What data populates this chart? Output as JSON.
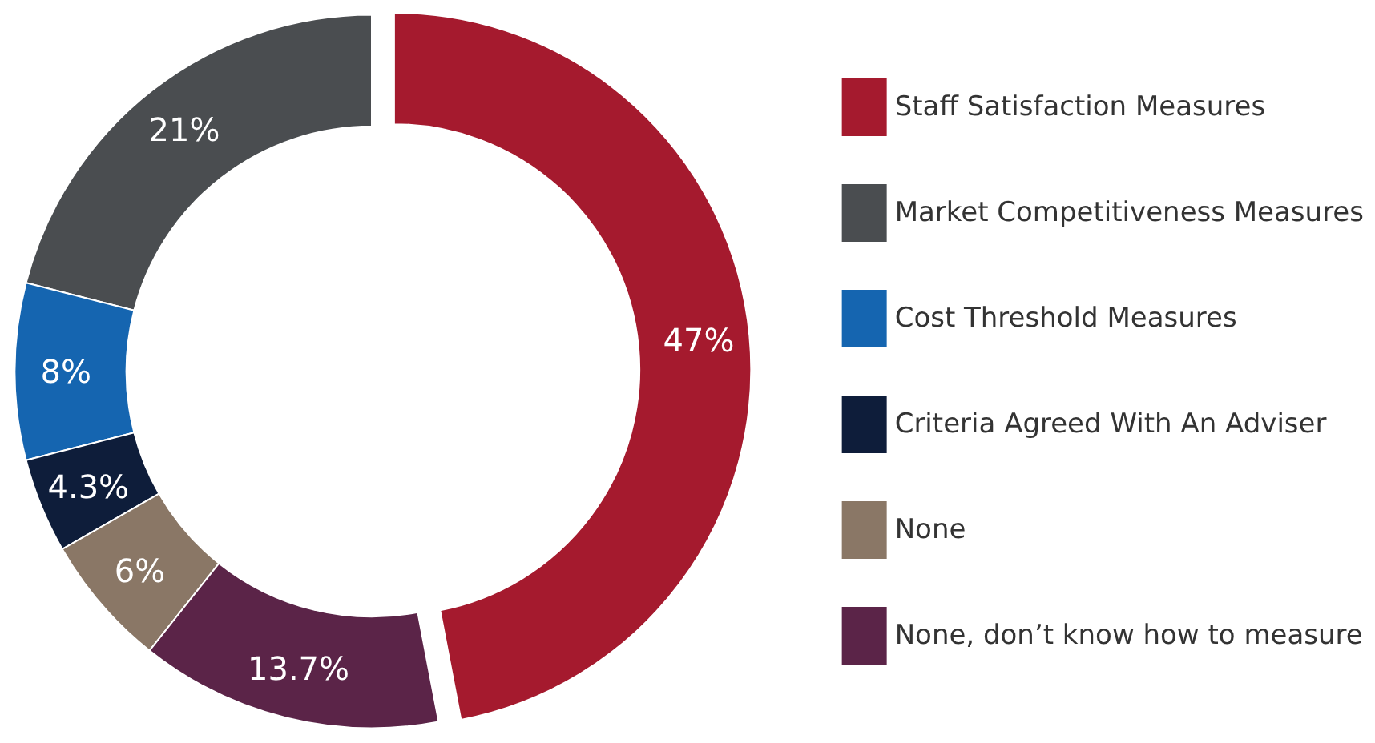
{
  "chart_data": {
    "type": "donut",
    "categories": [
      "Staff Satisfaction Measures",
      "Market Competitiveness Measures",
      "Cost Threshold Measures",
      "Criteria Agreed With An Adviser",
      "None",
      "None, don’t know how to measure"
    ],
    "values": [
      47,
      21,
      8,
      4.3,
      6,
      13.7
    ],
    "colors": [
      "#a51a2e",
      "#4a4d50",
      "#1565b0",
      "#0e1d3a",
      "#8a7766",
      "#5b2448"
    ],
    "value_labels": [
      "47%",
      "21%",
      "8%",
      "4.3%",
      "6%",
      "13.7%"
    ],
    "legend": "right"
  }
}
